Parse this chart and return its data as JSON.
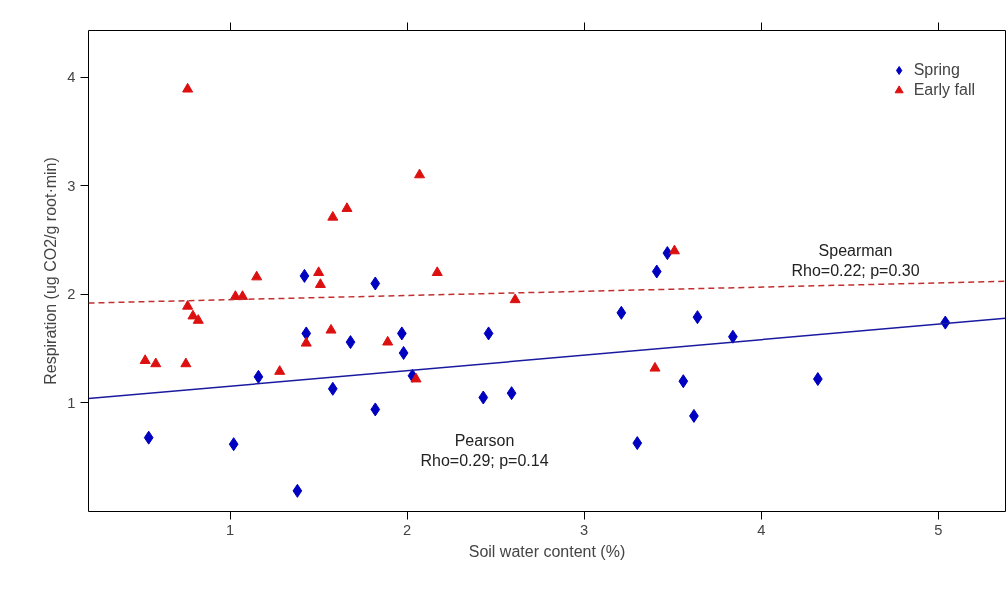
{
  "chart_data": {
    "type": "scatter",
    "xlabel": "Soil water content (%)",
    "ylabel": "Respiration (ug CO2/g root·min)",
    "xlim": [
      0.2,
      5.38
    ],
    "xticks": [
      1,
      2,
      3,
      4,
      5
    ],
    "ylim": [
      0,
      4.43
    ],
    "yticks": [
      1,
      2,
      3,
      4
    ],
    "tick_labels": "xy",
    "grid": false,
    "legend": "top right",
    "series": [
      {
        "name": "Spring",
        "color": "#0000c0",
        "marker": "diamond",
        "x": [
          1.42,
          1.82,
          1.43,
          1.68,
          1.97,
          2.46,
          0.54,
          1.02,
          1.16,
          1.38,
          1.58,
          1.82,
          1.98,
          2.03,
          2.43,
          3.47,
          3.41,
          3.21,
          3.64,
          3.84,
          5.04,
          2.59,
          3.56,
          4.32,
          3.62,
          3.3
        ],
        "values": [
          2.17,
          2.1,
          1.64,
          1.56,
          1.64,
          1.64,
          0.68,
          0.62,
          1.24,
          0.19,
          1.13,
          0.94,
          1.46,
          1.25,
          1.05,
          2.38,
          2.21,
          1.83,
          1.79,
          1.61,
          1.74,
          1.09,
          1.2,
          1.22,
          0.88,
          0.63
        ]
      },
      {
        "name": "Early fall",
        "color": "#dd1010",
        "marker": "triangle",
        "x": [
          0.76,
          2.07,
          1.58,
          1.66,
          1.15,
          1.5,
          1.51,
          2.17,
          1.03,
          1.07,
          0.76,
          0.79,
          0.82,
          1.57,
          1.43,
          1.89,
          0.52,
          0.58,
          0.75,
          1.28,
          2.05,
          3.51,
          2.61,
          3.4
        ],
        "values": [
          3.89,
          3.1,
          2.71,
          2.79,
          2.16,
          2.2,
          2.09,
          2.2,
          1.98,
          1.98,
          1.89,
          1.8,
          1.76,
          1.67,
          1.55,
          1.56,
          1.39,
          1.36,
          1.36,
          1.29,
          1.22,
          2.4,
          1.95,
          1.32
        ]
      },
      {
        "type": "line",
        "color": "#1a1aa0",
        "line_style": "solid",
        "marker": "none",
        "x": [
          0.2,
          5.38
        ],
        "values": [
          1.04,
          1.78
        ]
      },
      {
        "type": "line",
        "color": "#c03030",
        "line_style": "dashed",
        "marker": "none",
        "x": [
          0.2,
          5.38
        ],
        "values": [
          1.92,
          2.12
        ]
      }
    ],
    "annotations": [
      "Pearson\nRho=0.29; p=0.14",
      "Spearman\nRho=0.22; p=0.30"
    ]
  }
}
